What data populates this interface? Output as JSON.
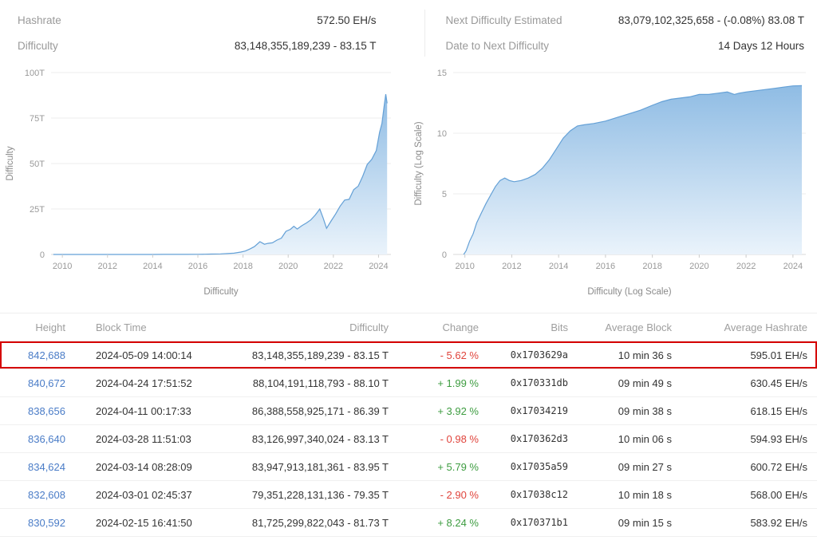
{
  "colors": {
    "positive": "#3d9c40",
    "negative": "#e0443c",
    "link": "#4a7cc7",
    "highlight_border": "#d50000",
    "chart_line": "#64a0d6",
    "chart_fill_top": "#8fbce4",
    "chart_fill_bottom": "#eaf3fb"
  },
  "stats": {
    "hashrate": {
      "label": "Hashrate",
      "value": "572.50 EH/s"
    },
    "difficulty": {
      "label": "Difficulty",
      "value": "83,148,355,189,239 - 83.15 T"
    },
    "next_difficulty": {
      "label": "Next Difficulty Estimated",
      "value": "83,079,102,325,658 - (-0.08%) 83.08 T"
    },
    "date_to_next": {
      "label": "Date to Next Difficulty",
      "value": "14 Days 12 Hours"
    }
  },
  "chart_data": [
    {
      "type": "area",
      "title": "Bitcoin Difficulty (linear)",
      "xlabel": "Difficulty",
      "ylabel": "Difficulty",
      "xlim": [
        2009.5,
        2024.55
      ],
      "ylim": [
        0,
        100
      ],
      "unit": "T",
      "grid": "horizontal",
      "xticks": [
        2010,
        2012,
        2014,
        2016,
        2018,
        2020,
        2022,
        2024
      ],
      "yticks": [
        {
          "v": 0,
          "label": "0"
        },
        {
          "v": 25,
          "label": "25T"
        },
        {
          "v": 50,
          "label": "50T"
        },
        {
          "v": 75,
          "label": "75T"
        },
        {
          "v": 100,
          "label": "100T"
        }
      ],
      "x": [
        2009.6,
        2010,
        2010.5,
        2011,
        2011.5,
        2012,
        2012.5,
        2013,
        2013.5,
        2014,
        2014.5,
        2015,
        2015.5,
        2016,
        2016.3,
        2016.6,
        2017,
        2017.3,
        2017.6,
        2017.9,
        2018.1,
        2018.3,
        2018.5,
        2018.75,
        2018.95,
        2019.1,
        2019.3,
        2019.5,
        2019.7,
        2019.9,
        2020.1,
        2020.25,
        2020.4,
        2020.6,
        2020.8,
        2021,
        2021.2,
        2021.4,
        2021.55,
        2021.7,
        2021.9,
        2022.1,
        2022.3,
        2022.5,
        2022.7,
        2022.9,
        2023.1,
        2023.3,
        2023.5,
        2023.7,
        2023.9,
        2024.05,
        2024.15,
        2024.25,
        2024.32,
        2024.38
      ],
      "y": [
        0,
        0,
        0,
        0,
        0,
        0,
        0,
        0,
        0,
        0.01,
        0.03,
        0.05,
        0.06,
        0.1,
        0.15,
        0.2,
        0.3,
        0.5,
        0.7,
        1.3,
        1.9,
        3,
        4.3,
        7,
        5.6,
        6.1,
        6.4,
        7.9,
        9,
        12.7,
        13.8,
        15.5,
        14,
        15.8,
        17.3,
        19,
        21.7,
        25,
        19.9,
        14.4,
        18.4,
        22.3,
        26.6,
        29.9,
        30.3,
        35.6,
        37.6,
        43,
        49.5,
        52.3,
        57.1,
        67.3,
        72,
        81.7,
        88.1,
        83.1
      ]
    },
    {
      "type": "area",
      "title": "Bitcoin Difficulty (log scale)",
      "xlabel": "Difficulty (Log Scale)",
      "ylabel": "Difficulty (Log Scale)",
      "xlim": [
        2009.5,
        2024.55
      ],
      "ylim": [
        0,
        15
      ],
      "unit": "log10(difficulty)",
      "grid": "horizontal",
      "xticks": [
        2010,
        2012,
        2014,
        2016,
        2018,
        2020,
        2022,
        2024
      ],
      "yticks": [
        {
          "v": 0,
          "label": "0"
        },
        {
          "v": 5,
          "label": "5"
        },
        {
          "v": 10,
          "label": "10"
        },
        {
          "v": 15,
          "label": "15"
        }
      ],
      "x": [
        2009.95,
        2010.05,
        2010.2,
        2010.35,
        2010.5,
        2010.7,
        2010.9,
        2011.1,
        2011.3,
        2011.5,
        2011.7,
        2011.9,
        2012.1,
        2012.4,
        2012.7,
        2013,
        2013.3,
        2013.6,
        2013.9,
        2014.2,
        2014.5,
        2014.8,
        2015.1,
        2015.5,
        2016,
        2016.5,
        2017,
        2017.5,
        2018,
        2018.4,
        2018.8,
        2019.2,
        2019.6,
        2020,
        2020.4,
        2020.8,
        2021.2,
        2021.5,
        2021.7,
        2022,
        2022.4,
        2022.8,
        2023.2,
        2023.6,
        2024,
        2024.38
      ],
      "y": [
        0,
        0.3,
        1.1,
        1.7,
        2.6,
        3.4,
        4.2,
        4.9,
        5.6,
        6.1,
        6.3,
        6.1,
        6,
        6.1,
        6.3,
        6.6,
        7.1,
        7.8,
        8.7,
        9.6,
        10.2,
        10.6,
        10.7,
        10.8,
        11,
        11.3,
        11.6,
        11.9,
        12.3,
        12.6,
        12.8,
        12.9,
        13,
        13.2,
        13.2,
        13.3,
        13.4,
        13.2,
        13.3,
        13.4,
        13.5,
        13.6,
        13.7,
        13.8,
        13.9,
        13.92
      ]
    }
  ],
  "table": {
    "headers": [
      "Height",
      "Block Time",
      "Difficulty",
      "Change",
      "Bits",
      "Average Block",
      "Average Hashrate"
    ],
    "rows": [
      {
        "height": "842,688",
        "block_time": "2024-05-09 14:00:14",
        "difficulty": "83,148,355,189,239 - 83.15 T",
        "change": "- 5.62 %",
        "bits": "0x1703629a",
        "average_block": "10 min 36 s",
        "average_hashrate": "595.01 EH/s",
        "highlighted": true
      },
      {
        "height": "840,672",
        "block_time": "2024-04-24 17:51:52",
        "difficulty": "88,104,191,118,793 - 88.10 T",
        "change": "+ 1.99 %",
        "bits": "0x170331db",
        "average_block": "09 min 49 s",
        "average_hashrate": "630.45 EH/s",
        "highlighted": false
      },
      {
        "height": "838,656",
        "block_time": "2024-04-11 00:17:33",
        "difficulty": "86,388,558,925,171 - 86.39 T",
        "change": "+ 3.92 %",
        "bits": "0x17034219",
        "average_block": "09 min 38 s",
        "average_hashrate": "618.15 EH/s",
        "highlighted": false
      },
      {
        "height": "836,640",
        "block_time": "2024-03-28 11:51:03",
        "difficulty": "83,126,997,340,024 - 83.13 T",
        "change": "- 0.98 %",
        "bits": "0x170362d3",
        "average_block": "10 min 06 s",
        "average_hashrate": "594.93 EH/s",
        "highlighted": false
      },
      {
        "height": "834,624",
        "block_time": "2024-03-14 08:28:09",
        "difficulty": "83,947,913,181,361 - 83.95 T",
        "change": "+ 5.79 %",
        "bits": "0x17035a59",
        "average_block": "09 min 27 s",
        "average_hashrate": "600.72 EH/s",
        "highlighted": false
      },
      {
        "height": "832,608",
        "block_time": "2024-03-01 02:45:37",
        "difficulty": "79,351,228,131,136 - 79.35 T",
        "change": "- 2.90 %",
        "bits": "0x17038c12",
        "average_block": "10 min 18 s",
        "average_hashrate": "568.00 EH/s",
        "highlighted": false
      },
      {
        "height": "830,592",
        "block_time": "2024-02-15 16:41:50",
        "difficulty": "81,725,299,822,043 - 81.73 T",
        "change": "+ 8.24 %",
        "bits": "0x170371b1",
        "average_block": "09 min 15 s",
        "average_hashrate": "583.92 EH/s",
        "highlighted": false
      }
    ]
  }
}
